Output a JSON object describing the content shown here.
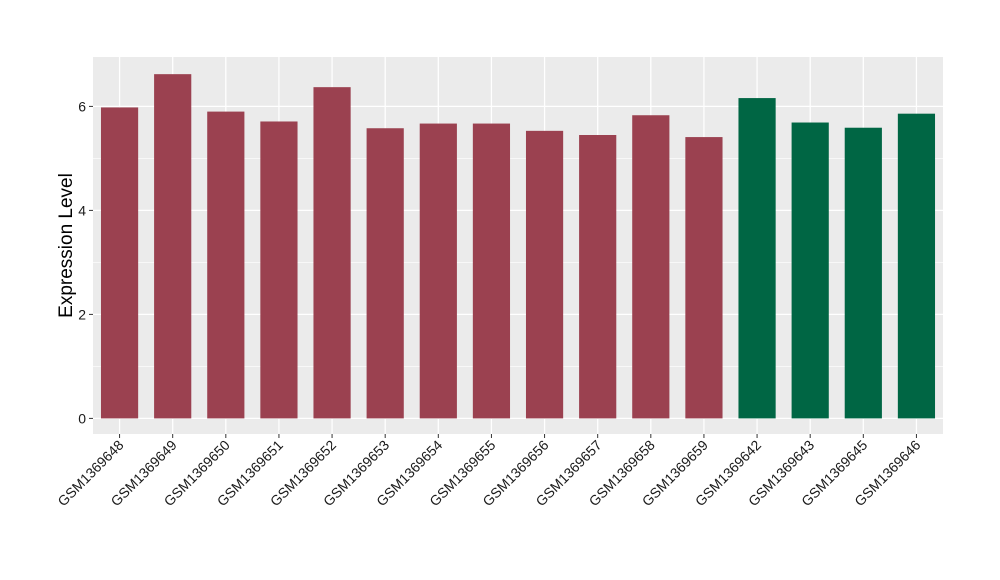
{
  "chart_data": {
    "type": "bar",
    "title": "",
    "xlabel": "",
    "ylabel": "Expression Level",
    "ylim": [
      -0.3,
      6.95
    ],
    "yticks": [
      0,
      2,
      4,
      6
    ],
    "grid": true,
    "categories": [
      "GSM1369648",
      "GSM1369649",
      "GSM1369650",
      "GSM1369651",
      "GSM1369652",
      "GSM1369653",
      "GSM1369654",
      "GSM1369655",
      "GSM1369656",
      "GSM1369657",
      "GSM1369658",
      "GSM1369659",
      "GSM1369642",
      "GSM1369643",
      "GSM1369645",
      "GSM1369646"
    ],
    "values": [
      5.98,
      6.62,
      5.9,
      5.71,
      6.37,
      5.58,
      5.67,
      5.67,
      5.53,
      5.45,
      5.83,
      5.41,
      6.16,
      5.69,
      5.59,
      5.86
    ],
    "bar_colors": [
      "#9b4150",
      "#9b4150",
      "#9b4150",
      "#9b4150",
      "#9b4150",
      "#9b4150",
      "#9b4150",
      "#9b4150",
      "#9b4150",
      "#9b4150",
      "#9b4150",
      "#9b4150",
      "#006644",
      "#006644",
      "#006644",
      "#006644"
    ],
    "panel_background": "#ebebeb",
    "gridline_color": "#ffffff"
  }
}
